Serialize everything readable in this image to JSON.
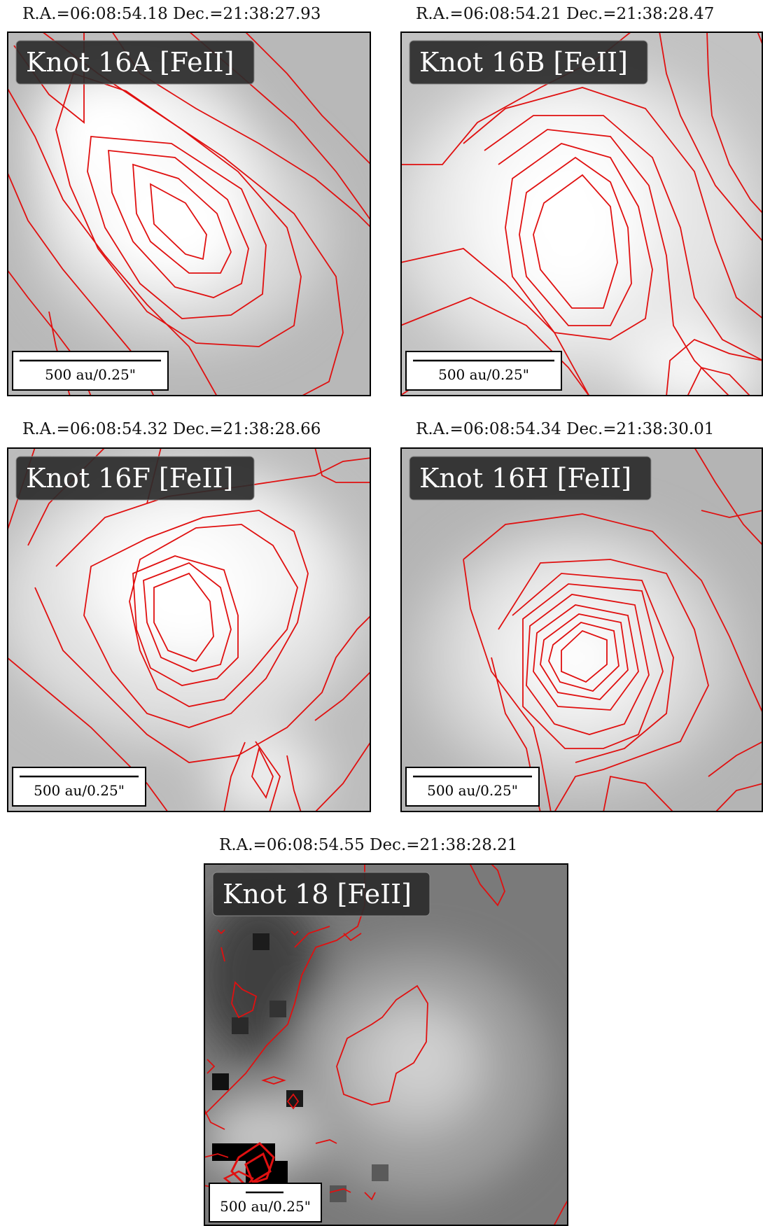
{
  "panels": [
    {
      "coord": "R.A.=06:08:54.18 Dec.=21:38:27.93",
      "title": "Knot 16A [FeII]",
      "scale": "500 au/0.25\""
    },
    {
      "coord": "R.A.=06:08:54.21 Dec.=21:38:28.47",
      "title": "Knot 16B [FeII]",
      "scale": "500 au/0.25\""
    },
    {
      "coord": "R.A.=06:08:54.32 Dec.=21:38:28.66",
      "title": "Knot 16F [FeII]",
      "scale": "500 au/0.25\""
    },
    {
      "coord": "R.A.=06:08:54.34 Dec.=21:38:30.01",
      "title": "Knot 16H [FeII]",
      "scale": "500 au/0.25\""
    },
    {
      "coord": "R.A.=06:08:54.55 Dec.=21:38:28.21",
      "title": "Knot 18 [FeII]",
      "scale": "500 au/0.25\""
    }
  ],
  "colors": {
    "contour": "#e01010",
    "label_bg": "#2b2b2b",
    "label_text": "#ffffff",
    "frame": "#000000"
  }
}
